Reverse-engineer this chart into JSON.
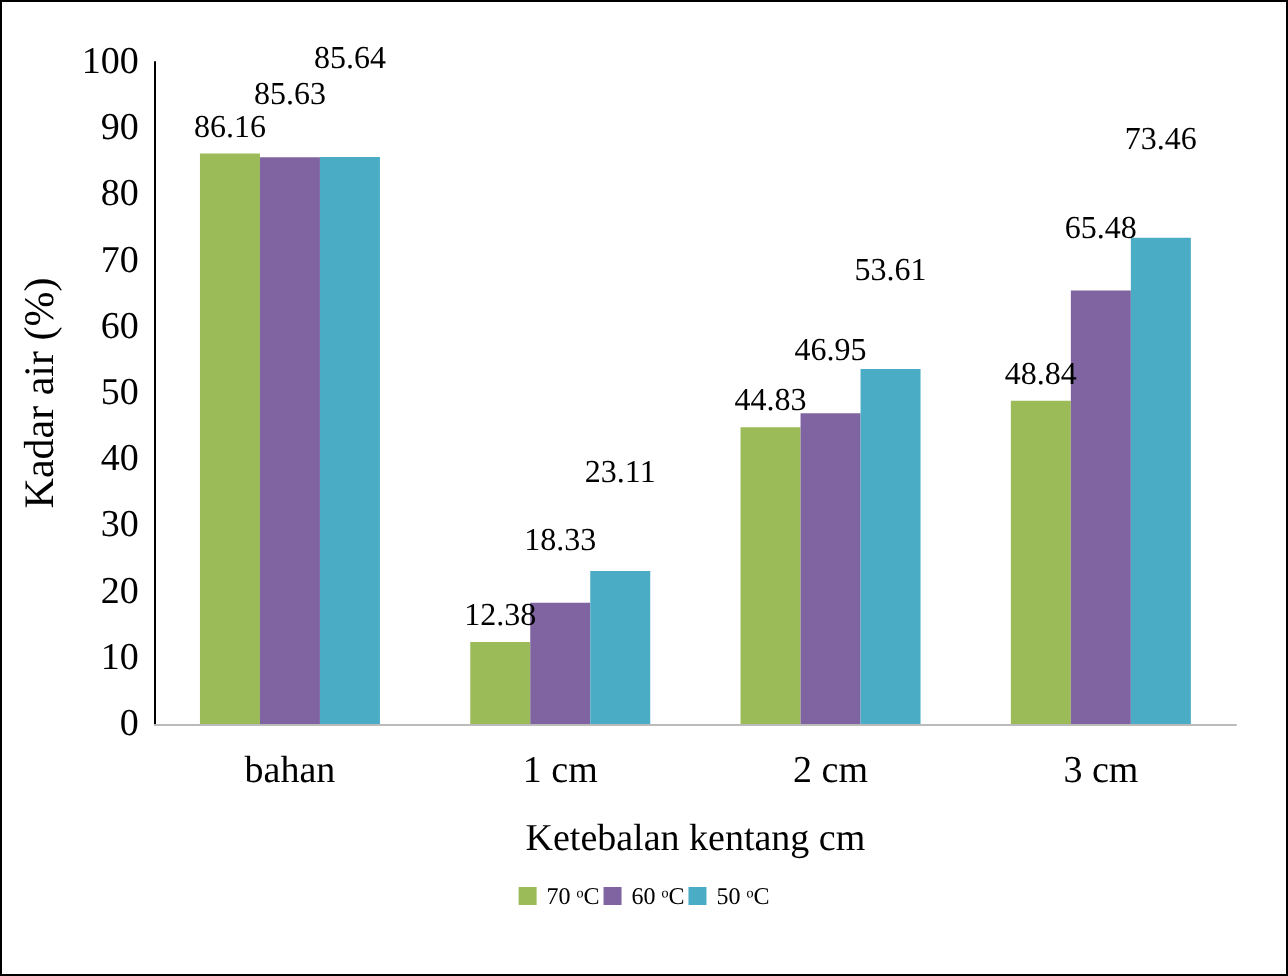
{
  "chart_data": {
    "type": "bar",
    "xlabel": "Ketebalan kentang cm",
    "ylabel": "Kadar air (%)",
    "categories": [
      "bahan",
      "1 cm",
      "2 cm",
      "3 cm"
    ],
    "series": [
      {
        "name": "70 ᵒC",
        "color": "#9bbb59",
        "values": [
          86.16,
          12.38,
          44.83,
          48.84
        ]
      },
      {
        "name": "60 ᵒC",
        "color": "#8064a2",
        "values": [
          85.63,
          18.33,
          46.95,
          65.48
        ]
      },
      {
        "name": "50 ᵒC",
        "color": "#4bacc6",
        "values": [
          85.64,
          23.11,
          53.61,
          73.46
        ]
      }
    ],
    "ylim": [
      0,
      100
    ],
    "yticks": [
      0,
      10,
      20,
      30,
      40,
      50,
      60,
      70,
      80,
      90,
      100
    ],
    "grid": false,
    "legend": "bottom",
    "data_labels": true
  }
}
